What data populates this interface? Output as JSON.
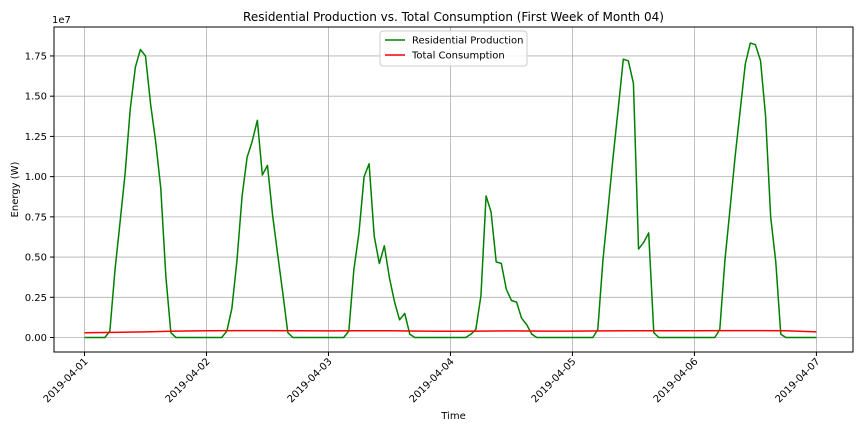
{
  "chart_data": {
    "type": "line",
    "title": "Residential Production vs. Total Consumption (First Week of Month 04)",
    "xlabel": "Time",
    "ylabel": "Energy (W)",
    "y_scale_label": "1e7",
    "x_tick_labels": [
      "2019-04-01",
      "2019-04-02",
      "2019-04-03",
      "2019-04-04",
      "2019-04-05",
      "2019-04-06",
      "2019-04-07"
    ],
    "y_tick_labels": [
      "0.00",
      "0.25",
      "0.50",
      "0.75",
      "1.00",
      "1.25",
      "1.50",
      "1.75"
    ],
    "ylim": [
      -0.09,
      1.93
    ],
    "xlim": [
      -0.25,
      6.3
    ],
    "grid": true,
    "legend_position": "top-center",
    "series": [
      {
        "name": "Residential Production",
        "color": "#008000",
        "x": [
          0,
          0.167,
          0.208,
          0.25,
          0.292,
          0.333,
          0.375,
          0.417,
          0.458,
          0.5,
          0.542,
          0.583,
          0.625,
          0.667,
          0.708,
          0.75,
          1.0,
          1.125,
          1.167,
          1.208,
          1.25,
          1.292,
          1.333,
          1.375,
          1.417,
          1.458,
          1.5,
          1.542,
          1.583,
          1.625,
          1.667,
          1.708,
          1.75,
          2.0,
          2.125,
          2.167,
          2.208,
          2.25,
          2.292,
          2.333,
          2.375,
          2.417,
          2.458,
          2.5,
          2.542,
          2.583,
          2.625,
          2.667,
          2.708,
          2.75,
          3.0,
          3.125,
          3.167,
          3.208,
          3.25,
          3.292,
          3.333,
          3.375,
          3.417,
          3.458,
          3.5,
          3.542,
          3.583,
          3.625,
          3.667,
          3.708,
          3.75,
          4.0,
          4.167,
          4.208,
          4.25,
          4.292,
          4.333,
          4.375,
          4.417,
          4.458,
          4.5,
          4.542,
          4.583,
          4.625,
          4.667,
          4.708,
          4.75,
          5.0,
          5.167,
          5.208,
          5.25,
          5.292,
          5.333,
          5.375,
          5.417,
          5.458,
          5.5,
          5.542,
          5.583,
          5.625,
          5.667,
          5.708,
          5.75,
          6.0
        ],
        "values": [
          0,
          0,
          0.04,
          0.42,
          0.72,
          1.02,
          1.42,
          1.68,
          1.79,
          1.75,
          1.45,
          1.22,
          0.93,
          0.38,
          0.03,
          0,
          0,
          0,
          0.04,
          0.18,
          0.48,
          0.88,
          1.12,
          1.22,
          1.35,
          1.01,
          1.07,
          0.76,
          0.52,
          0.28,
          0.03,
          0,
          0,
          0,
          0,
          0.04,
          0.42,
          0.65,
          1.0,
          1.08,
          0.63,
          0.46,
          0.57,
          0.37,
          0.22,
          0.11,
          0.15,
          0.02,
          0,
          0,
          0,
          0,
          0.02,
          0.05,
          0.26,
          0.88,
          0.78,
          0.47,
          0.46,
          0.3,
          0.23,
          0.22,
          0.12,
          0.08,
          0.02,
          0,
          0,
          0,
          0,
          0.05,
          0.48,
          0.8,
          1.12,
          1.42,
          1.73,
          1.72,
          1.58,
          0.55,
          0.59,
          0.65,
          0.03,
          0,
          0,
          0,
          0,
          0.05,
          0.48,
          0.8,
          1.12,
          1.41,
          1.7,
          1.83,
          1.82,
          1.72,
          1.38,
          0.75,
          0.47,
          0.02,
          0,
          0
        ]
      },
      {
        "name": "Total Consumption",
        "color": "#ff0000",
        "x": [
          0,
          0.25,
          0.5,
          0.75,
          1.0,
          1.25,
          1.5,
          1.75,
          2.0,
          2.25,
          2.5,
          2.75,
          3.0,
          3.25,
          3.5,
          3.75,
          4.0,
          4.25,
          4.5,
          4.75,
          5.0,
          5.25,
          5.5,
          5.75,
          6.0
        ],
        "values": [
          0.03,
          0.032,
          0.035,
          0.04,
          0.042,
          0.043,
          0.043,
          0.042,
          0.041,
          0.042,
          0.042,
          0.04,
          0.039,
          0.04,
          0.041,
          0.04,
          0.04,
          0.041,
          0.042,
          0.042,
          0.042,
          0.043,
          0.043,
          0.042,
          0.035
        ]
      }
    ]
  }
}
